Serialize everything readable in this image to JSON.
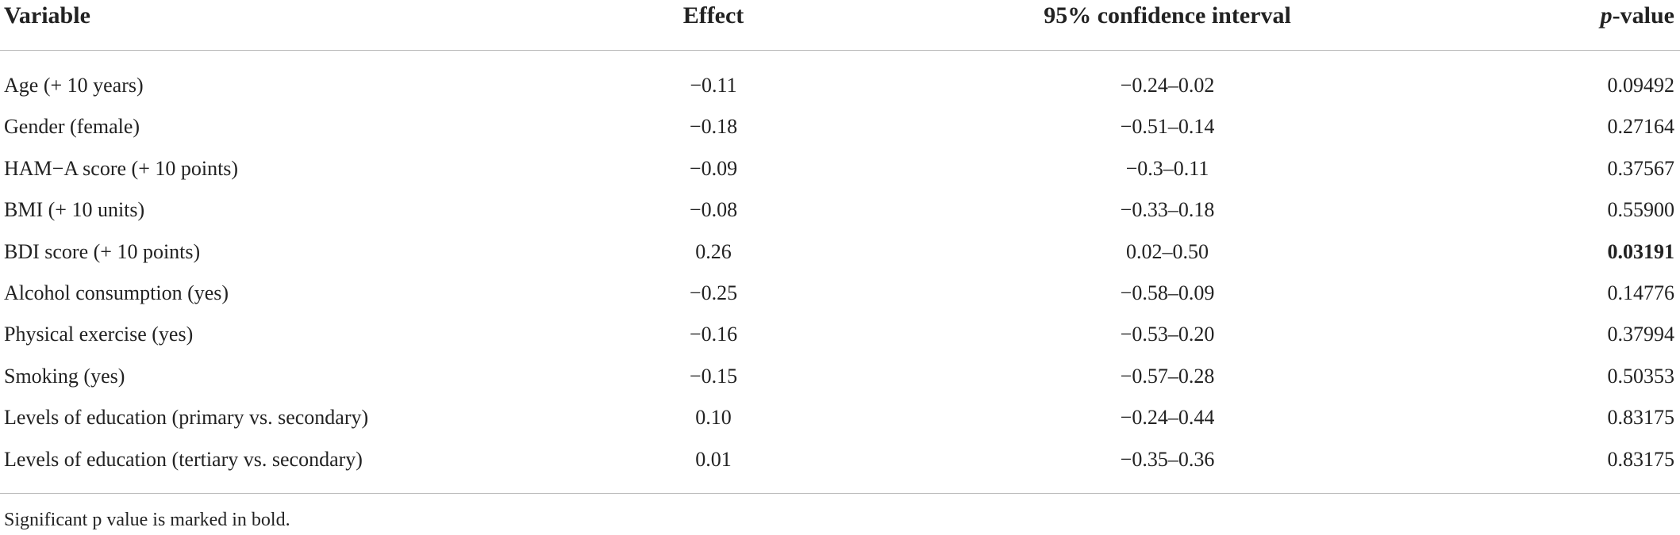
{
  "table": {
    "header": [
      "Variable",
      "Effect",
      "95% confidence interval",
      {
        "italic": "p",
        "text": "-value"
      }
    ],
    "rows": [
      [
        "Age (+ 10 years)",
        "−0.11",
        "−0.24–0.02",
        "0.09492"
      ],
      [
        "Gender (female)",
        "−0.18",
        "−0.51–0.14",
        "0.27164"
      ],
      [
        "HAM−A score (+ 10 points)",
        "−0.09",
        "−0.3–0.11",
        "0.37567"
      ],
      [
        "BMI (+ 10 units)",
        "−0.08",
        "−0.33–0.18",
        "0.55900"
      ],
      [
        "BDI score (+ 10 points)",
        "0.26",
        "0.02–0.50",
        "0.03191"
      ],
      [
        "Alcohol consumption (yes)",
        "−0.25",
        "−0.58–0.09",
        "0.14776"
      ],
      [
        "Physical exercise (yes)",
        "−0.16",
        "−0.53–0.20",
        "0.37994"
      ],
      [
        "Smoking (yes)",
        "−0.15",
        "−0.57–0.28",
        "0.50353"
      ],
      [
        "Levels of education (primary vs. secondary)",
        "0.10",
        "−0.24–0.44",
        "0.83175"
      ],
      [
        "Levels of education (tertiary vs. secondary)",
        "0.01",
        "−0.35–0.36",
        "0.83175"
      ]
    ],
    "bold_rows_last_column": [
      4
    ],
    "footnote": "Significant p value is marked in bold."
  }
}
